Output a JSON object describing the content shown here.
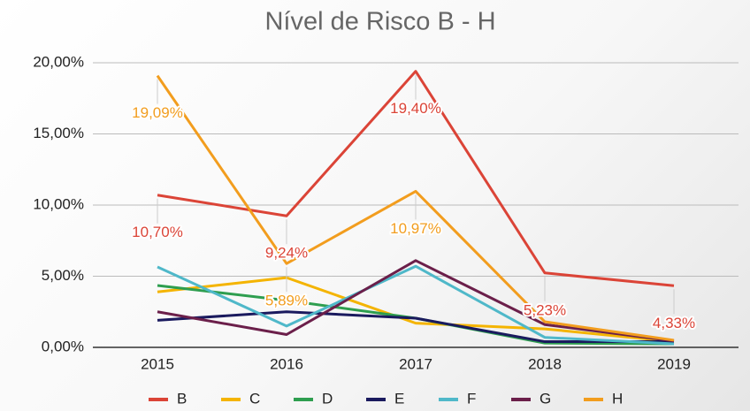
{
  "chart_data": {
    "type": "line",
    "title": "Nível de Risco B - H",
    "categories": [
      "2015",
      "2016",
      "2017",
      "2018",
      "2019"
    ],
    "ylim": [
      0,
      20
    ],
    "yticks": [
      {
        "value": 0,
        "label": "0,00%"
      },
      {
        "value": 5,
        "label": "5,00%"
      },
      {
        "value": 10,
        "label": "10,00%"
      },
      {
        "value": 15,
        "label": "15,00%"
      },
      {
        "value": 20,
        "label": "20,00%"
      }
    ],
    "grid": true,
    "legend": "bottom",
    "series": [
      {
        "name": "B",
        "color": "#db4437",
        "values": [
          10.7,
          9.24,
          19.4,
          5.23,
          4.33
        ],
        "value_labels": [
          "10,70%",
          "9,24%",
          "19,40%",
          "5,23%",
          "4,33%"
        ]
      },
      {
        "name": "C",
        "color": "#f4b400",
        "values": [
          3.9,
          4.9,
          1.7,
          1.3,
          0.4
        ]
      },
      {
        "name": "D",
        "color": "#2e9e4f",
        "values": [
          4.35,
          3.3,
          2.05,
          0.3,
          0.25
        ]
      },
      {
        "name": "E",
        "color": "#1a1a5e",
        "values": [
          1.9,
          2.5,
          2.05,
          0.4,
          0.4
        ]
      },
      {
        "name": "F",
        "color": "#4fb8c9",
        "values": [
          5.65,
          1.5,
          5.7,
          0.7,
          0.25
        ]
      },
      {
        "name": "G",
        "color": "#6b1f4a",
        "values": [
          2.5,
          0.9,
          6.1,
          1.6,
          0.45
        ]
      },
      {
        "name": "H",
        "color": "#f29d1e",
        "values": [
          19.09,
          5.89,
          10.97,
          1.8,
          0.5
        ],
        "value_labels": [
          "19,09%",
          "5,89%",
          "10,97%",
          null,
          null
        ]
      }
    ]
  }
}
